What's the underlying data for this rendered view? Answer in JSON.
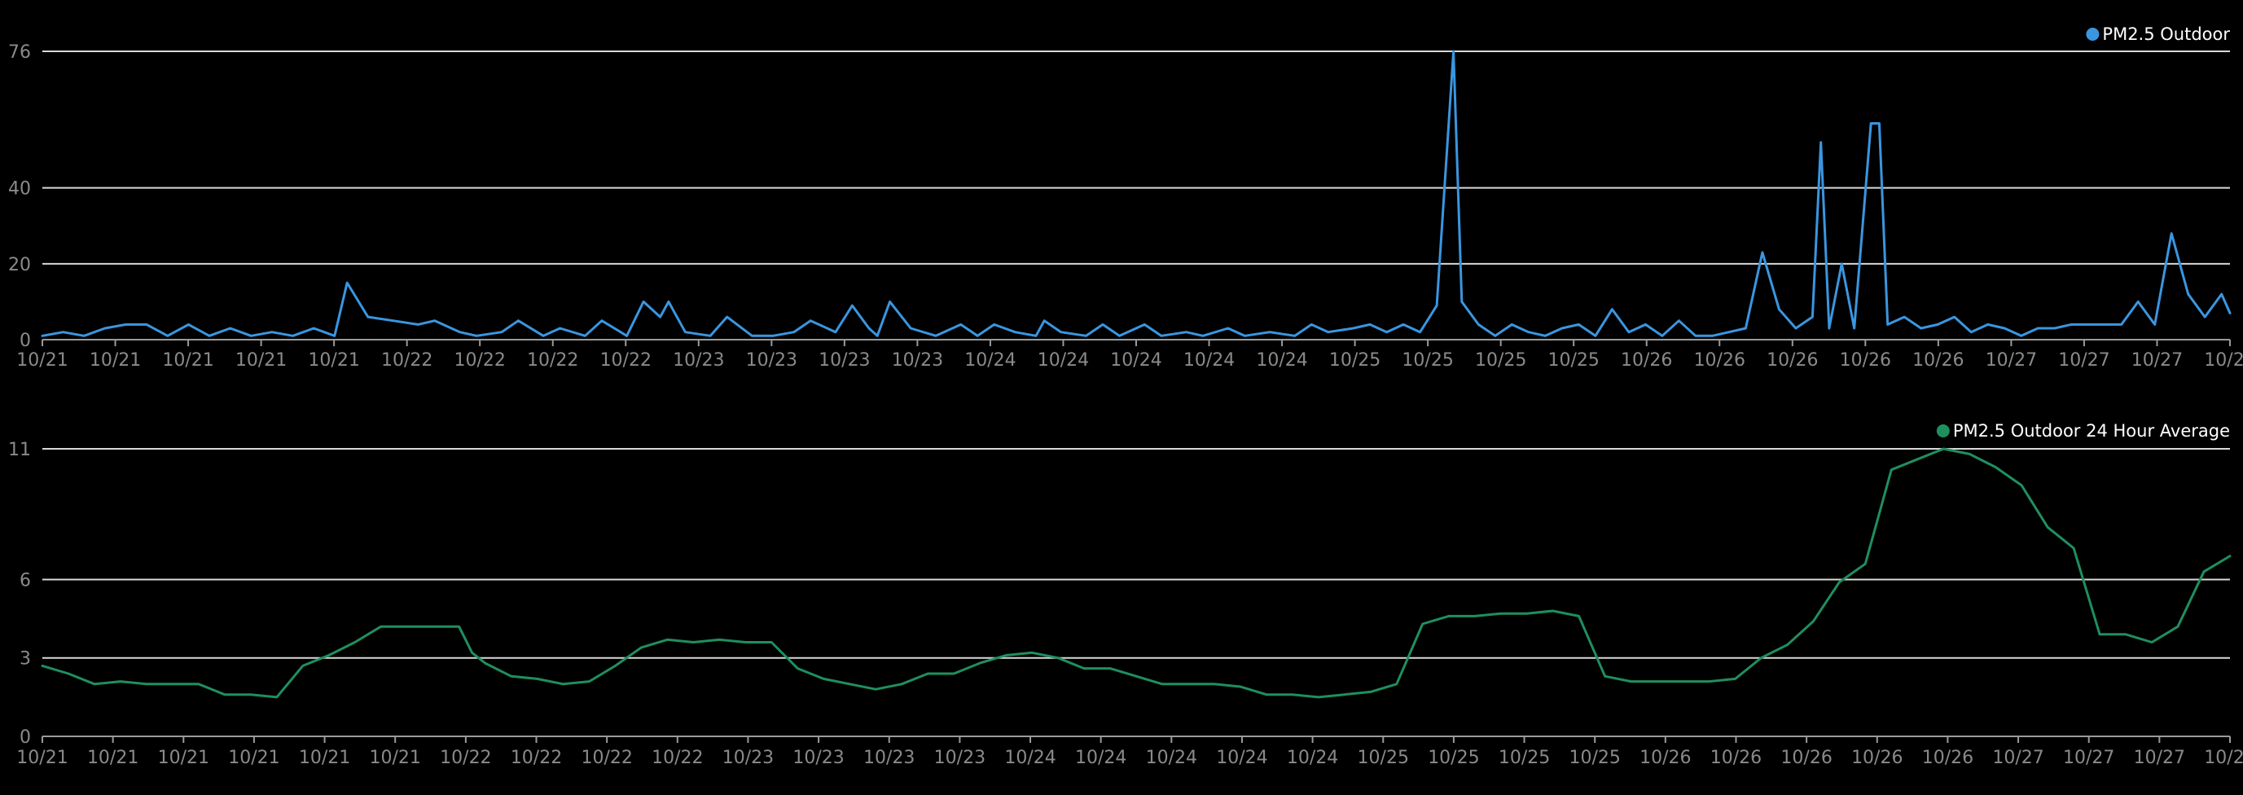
{
  "chart_data": [
    {
      "type": "line",
      "legend": {
        "label": "PM2.5 Outdoor",
        "placement": "top-right"
      },
      "color": "#3a96e0",
      "x_tick_labels": [
        "10/21",
        "10/21",
        "10/21",
        "10/21",
        "10/21",
        "10/22",
        "10/22",
        "10/22",
        "10/22",
        "10/23",
        "10/23",
        "10/23",
        "10/23",
        "10/24",
        "10/24",
        "10/24",
        "10/24",
        "10/24",
        "10/25",
        "10/25",
        "10/25",
        "10/25",
        "10/26",
        "10/26",
        "10/26",
        "10/26",
        "10/26",
        "10/27",
        "10/27",
        "10/27",
        "10/27"
      ],
      "y_ticks": [
        0,
        20,
        40,
        76
      ],
      "ylim": [
        0,
        76
      ],
      "grid": true,
      "series": [
        {
          "values": [
            [
              0,
              1
            ],
            [
              0.5,
              2
            ],
            [
              1,
              1
            ],
            [
              1.5,
              3
            ],
            [
              2,
              4
            ],
            [
              2.5,
              4
            ],
            [
              3,
              1
            ],
            [
              3.5,
              4
            ],
            [
              4,
              1
            ],
            [
              4.5,
              3
            ],
            [
              5,
              1
            ],
            [
              5.5,
              2
            ],
            [
              6,
              1
            ],
            [
              6.5,
              3
            ],
            [
              7,
              1
            ],
            [
              7.3,
              15
            ],
            [
              7.8,
              6
            ],
            [
              8.4,
              5
            ],
            [
              9,
              4
            ],
            [
              9.4,
              5
            ],
            [
              10,
              2
            ],
            [
              10.4,
              1
            ],
            [
              11,
              2
            ],
            [
              11.4,
              5
            ],
            [
              12,
              1
            ],
            [
              12.4,
              3
            ],
            [
              13,
              1
            ],
            [
              13.4,
              5
            ],
            [
              14,
              1
            ],
            [
              14.4,
              10
            ],
            [
              14.8,
              6
            ],
            [
              15,
              10
            ],
            [
              15.4,
              2
            ],
            [
              16,
              1
            ],
            [
              16.4,
              6
            ],
            [
              17,
              1
            ],
            [
              17.5,
              1
            ],
            [
              18,
              2
            ],
            [
              18.4,
              5
            ],
            [
              19,
              2
            ],
            [
              19.4,
              9
            ],
            [
              19.8,
              3
            ],
            [
              20,
              1
            ],
            [
              20.3,
              10
            ],
            [
              20.8,
              3
            ],
            [
              21.4,
              1
            ],
            [
              22,
              4
            ],
            [
              22.4,
              1
            ],
            [
              22.8,
              4
            ],
            [
              23.3,
              2
            ],
            [
              23.8,
              1
            ],
            [
              24,
              5
            ],
            [
              24.4,
              2
            ],
            [
              25,
              1
            ],
            [
              25.4,
              4
            ],
            [
              25.8,
              1
            ],
            [
              26.4,
              4
            ],
            [
              26.8,
              1
            ],
            [
              27.4,
              2
            ],
            [
              27.8,
              1
            ],
            [
              28.4,
              3
            ],
            [
              28.8,
              1
            ],
            [
              29.4,
              2
            ],
            [
              30,
              1
            ],
            [
              30.4,
              4
            ],
            [
              30.8,
              2
            ],
            [
              31.4,
              3
            ],
            [
              31.8,
              4
            ],
            [
              32.2,
              2
            ],
            [
              32.6,
              4
            ],
            [
              33,
              2
            ],
            [
              33.4,
              9
            ],
            [
              33.8,
              76
            ],
            [
              34,
              10
            ],
            [
              34.4,
              4
            ],
            [
              34.8,
              1
            ],
            [
              35.2,
              4
            ],
            [
              35.6,
              2
            ],
            [
              36,
              1
            ],
            [
              36.4,
              3
            ],
            [
              36.8,
              4
            ],
            [
              37.2,
              1
            ],
            [
              37.6,
              8
            ],
            [
              38,
              2
            ],
            [
              38.4,
              4
            ],
            [
              38.8,
              1
            ],
            [
              39.2,
              5
            ],
            [
              39.6,
              1
            ],
            [
              40,
              1
            ],
            [
              40.4,
              2
            ],
            [
              40.8,
              3
            ],
            [
              41.2,
              23
            ],
            [
              41.6,
              8
            ],
            [
              42,
              3
            ],
            [
              42.4,
              6
            ],
            [
              42.6,
              52
            ],
            [
              42.8,
              3
            ],
            [
              43.1,
              20
            ],
            [
              43.4,
              3
            ],
            [
              43.8,
              57
            ],
            [
              44,
              57
            ],
            [
              44.2,
              4
            ],
            [
              44.6,
              6
            ],
            [
              45,
              3
            ],
            [
              45.4,
              4
            ],
            [
              45.8,
              6
            ],
            [
              46.2,
              2
            ],
            [
              46.6,
              4
            ],
            [
              47,
              3
            ],
            [
              47.4,
              1
            ],
            [
              47.8,
              3
            ],
            [
              48.2,
              3
            ],
            [
              48.6,
              4
            ],
            [
              49,
              4
            ],
            [
              49.4,
              4
            ],
            [
              49.8,
              4
            ],
            [
              50.2,
              10
            ],
            [
              50.6,
              4
            ],
            [
              51,
              28
            ],
            [
              51.4,
              12
            ],
            [
              51.8,
              6
            ],
            [
              52.2,
              12
            ],
            [
              52.4,
              7
            ]
          ]
        }
      ]
    },
    {
      "type": "line",
      "legend": {
        "label": "PM2.5 Outdoor 24 Hour Average",
        "placement": "top-right"
      },
      "color": "#1f8f5f",
      "x_tick_labels": [
        "10/21",
        "10/21",
        "10/21",
        "10/21",
        "10/21",
        "10/21",
        "10/22",
        "10/22",
        "10/22",
        "10/22",
        "10/23",
        "10/23",
        "10/23",
        "10/23",
        "10/24",
        "10/24",
        "10/24",
        "10/24",
        "10/24",
        "10/25",
        "10/25",
        "10/25",
        "10/25",
        "10/26",
        "10/26",
        "10/26",
        "10/26",
        "10/26",
        "10/27",
        "10/27",
        "10/27",
        "10/27"
      ],
      "y_ticks": [
        0,
        3,
        6,
        11
      ],
      "ylim": [
        0,
        11
      ],
      "grid": true,
      "series": [
        {
          "values": [
            [
              0,
              2.7
            ],
            [
              1,
              2.4
            ],
            [
              2,
              2.0
            ],
            [
              3,
              2.1
            ],
            [
              4,
              2.0
            ],
            [
              5,
              2.0
            ],
            [
              6,
              2.0
            ],
            [
              7,
              1.6
            ],
            [
              8,
              1.6
            ],
            [
              9,
              1.5
            ],
            [
              10,
              2.7
            ],
            [
              11,
              3.1
            ],
            [
              12,
              3.6
            ],
            [
              13,
              4.2
            ],
            [
              14,
              4.2
            ],
            [
              15,
              4.2
            ],
            [
              16,
              4.2
            ],
            [
              16.5,
              3.2
            ],
            [
              17,
              2.8
            ],
            [
              18,
              2.3
            ],
            [
              19,
              2.2
            ],
            [
              20,
              2.0
            ],
            [
              21,
              2.1
            ],
            [
              22,
              2.7
            ],
            [
              23,
              3.4
            ],
            [
              24,
              3.7
            ],
            [
              25,
              3.6
            ],
            [
              26,
              3.7
            ],
            [
              27,
              3.6
            ],
            [
              28,
              3.6
            ],
            [
              29,
              2.6
            ],
            [
              30,
              2.2
            ],
            [
              31,
              2.0
            ],
            [
              32,
              1.8
            ],
            [
              33,
              2.0
            ],
            [
              34,
              2.4
            ],
            [
              35,
              2.4
            ],
            [
              36,
              2.8
            ],
            [
              37,
              3.1
            ],
            [
              38,
              3.2
            ],
            [
              39,
              3.0
            ],
            [
              40,
              2.6
            ],
            [
              41,
              2.6
            ],
            [
              42,
              2.3
            ],
            [
              43,
              2.0
            ],
            [
              44,
              2.0
            ],
            [
              45,
              2.0
            ],
            [
              46,
              1.9
            ],
            [
              47,
              1.6
            ],
            [
              48,
              1.6
            ],
            [
              49,
              1.5
            ],
            [
              50,
              1.6
            ],
            [
              51,
              1.7
            ],
            [
              52,
              2.0
            ],
            [
              53,
              4.3
            ],
            [
              54,
              4.6
            ],
            [
              55,
              4.6
            ],
            [
              56,
              4.7
            ],
            [
              57,
              4.7
            ],
            [
              58,
              4.8
            ],
            [
              59,
              4.6
            ],
            [
              60,
              2.3
            ],
            [
              61,
              2.1
            ],
            [
              62,
              2.1
            ],
            [
              63,
              2.1
            ],
            [
              64,
              2.1
            ],
            [
              65,
              2.2
            ],
            [
              66,
              3.0
            ],
            [
              67,
              3.5
            ],
            [
              68,
              4.4
            ],
            [
              69,
              5.9
            ],
            [
              70,
              6.6
            ],
            [
              71,
              10.2
            ],
            [
              72,
              10.6
            ],
            [
              73,
              11.0
            ],
            [
              74,
              10.8
            ],
            [
              75,
              10.3
            ],
            [
              76,
              9.6
            ],
            [
              77,
              8.0
            ],
            [
              78,
              7.2
            ],
            [
              79,
              3.9
            ],
            [
              80,
              3.9
            ],
            [
              81,
              3.6
            ],
            [
              82,
              4.2
            ],
            [
              83,
              6.3
            ],
            [
              84,
              6.9
            ]
          ]
        }
      ]
    }
  ]
}
